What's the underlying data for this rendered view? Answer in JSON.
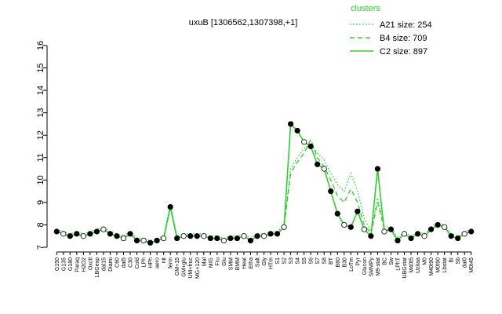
{
  "chart_data": {
    "type": "line",
    "title": "uxuB [1306562,1307398,+1]",
    "legend_title": "clusters",
    "legend": "top-right",
    "categories": [
      "G150",
      "G135",
      "G180",
      "Paraq",
      "H2O2",
      "Oxctl",
      "LBGexp",
      "dal15",
      "Diami",
      "C60",
      "dal5",
      "C30",
      "Cold",
      "LPh",
      "HPh",
      "aero",
      "nit",
      "ferm",
      "GM+15",
      "GM+glu",
      "UM+fruc",
      "MG+120",
      "Mal",
      "M/G",
      "Fru",
      "Glu",
      "SMM",
      "BMM",
      "Heat",
      "Etha",
      "Salt",
      "Gly",
      "HTm",
      "S1",
      "S2",
      "S3",
      "S4",
      "S5",
      "S6",
      "S7",
      "S8",
      "BT",
      "B60",
      "B30",
      "LoTm",
      "Pyr",
      "Glucon",
      "SMMPy",
      "M9-stat",
      "BC",
      "Sw",
      "LPhT",
      "UBGstat",
      "M40t5",
      "Uzitaa",
      "M0",
      "M40t90",
      "M0t90",
      "Lbstat",
      "BI",
      "Sb",
      "dal0",
      "M0t45"
    ],
    "series": [
      {
        "name": "A21 size: 254",
        "color": "#33cc33",
        "dash": "dotted",
        "values": [
          7.8,
          7.7,
          7.6,
          7.7,
          7.6,
          7.7,
          7.8,
          7.9,
          7.7,
          7.6,
          7.5,
          7.7,
          7.4,
          7.4,
          7.3,
          7.4,
          7.5,
          8.9,
          7.5,
          7.6,
          7.6,
          7.6,
          7.6,
          7.5,
          7.5,
          7.4,
          7.5,
          7.5,
          7.6,
          7.4,
          7.6,
          7.6,
          7.7,
          7.7,
          8.0,
          10.5,
          11.0,
          11.4,
          11.6,
          11.2,
          10.9,
          10.3,
          9.8,
          9.5,
          10.3,
          9.5,
          8.3,
          7.7,
          9.2,
          7.9,
          7.9,
          7.4,
          7.7,
          7.5,
          7.7,
          7.6,
          7.9,
          8.1,
          8.0,
          7.6,
          7.5,
          7.7,
          7.8
        ]
      },
      {
        "name": "B4 size: 709",
        "color": "#33cc33",
        "dash": "dashed",
        "values": [
          7.7,
          7.6,
          7.5,
          7.6,
          7.5,
          7.6,
          7.7,
          7.8,
          7.6,
          7.5,
          7.4,
          7.6,
          7.3,
          7.3,
          7.2,
          7.3,
          7.4,
          8.8,
          7.4,
          7.5,
          7.5,
          7.5,
          7.5,
          7.4,
          7.4,
          7.3,
          7.4,
          7.4,
          7.5,
          7.3,
          7.5,
          7.5,
          7.6,
          7.6,
          7.9,
          10.3,
          10.8,
          11.2,
          11.8,
          11.0,
          10.6,
          10.0,
          9.3,
          9.0,
          9.6,
          9.0,
          8.0,
          7.6,
          9.0,
          7.8,
          7.8,
          7.3,
          7.6,
          7.4,
          7.6,
          7.5,
          7.8,
          8.0,
          7.9,
          7.5,
          7.4,
          7.6,
          7.7
        ]
      },
      {
        "name": "C2 size: 897",
        "color": "#33cc33",
        "dash": "solid",
        "values": [
          7.7,
          7.6,
          7.5,
          7.6,
          7.5,
          7.6,
          7.7,
          7.8,
          7.6,
          7.5,
          7.4,
          7.6,
          7.3,
          7.3,
          7.2,
          7.3,
          7.4,
          8.8,
          7.4,
          7.5,
          7.5,
          7.5,
          7.5,
          7.4,
          7.4,
          7.3,
          7.4,
          7.4,
          7.5,
          7.3,
          7.5,
          7.5,
          7.6,
          7.6,
          7.9,
          12.5,
          12.2,
          11.7,
          11.5,
          10.7,
          10.5,
          9.5,
          8.5,
          8.0,
          7.9,
          8.6,
          7.8,
          7.5,
          10.5,
          7.7,
          7.8,
          7.3,
          7.6,
          7.4,
          7.6,
          7.5,
          7.8,
          8.0,
          7.9,
          7.5,
          7.4,
          7.6,
          7.7
        ]
      }
    ],
    "ylim": [
      7,
      16
    ],
    "yticks": [
      7,
      8,
      9,
      10,
      11,
      12,
      13,
      14,
      15,
      16
    ]
  }
}
